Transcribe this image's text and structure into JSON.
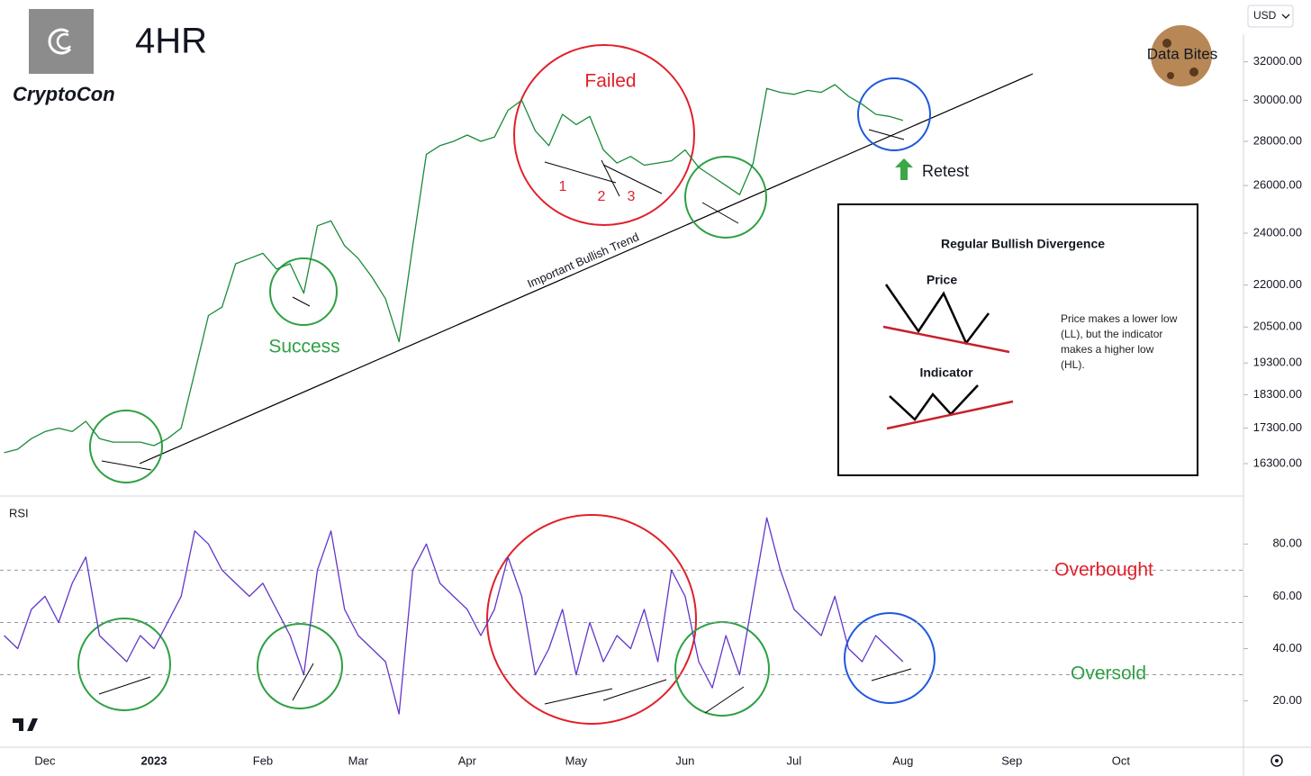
{
  "chart_data": [
    {
      "type": "line",
      "title": "4HR",
      "brand": "CryptoCon",
      "watermark": "Data Bites",
      "currency": "USD",
      "log": true,
      "ylim": [
        15460,
        35500
      ],
      "yticks": [
        {
          "value": 32000,
          "label": "32000.00"
        },
        {
          "value": 30000,
          "label": "30000.00"
        },
        {
          "value": 28000,
          "label": "28000.00"
        },
        {
          "value": 26000,
          "label": "26000.00"
        },
        {
          "value": 24000,
          "label": "24000.00"
        },
        {
          "value": 22000,
          "label": "22000.00"
        },
        {
          "value": 20500,
          "label": "20500.00"
        },
        {
          "value": 19300,
          "label": "19300.00"
        },
        {
          "value": 18300,
          "label": "18300.00"
        },
        {
          "value": 17300,
          "label": "17300.00"
        },
        {
          "value": 16300,
          "label": "16300.00"
        }
      ],
      "series": [
        {
          "name": "Price",
          "color": "#1b8a3a",
          "values": [
            16600,
            16700,
            17000,
            17200,
            17300,
            17200,
            17500,
            17000,
            16900,
            16900,
            16900,
            16800,
            17000,
            17300,
            19000,
            20900,
            21200,
            22800,
            23000,
            23200,
            22600,
            22800,
            21700,
            24300,
            24500,
            23500,
            23000,
            22300,
            21500,
            20000,
            23500,
            27400,
            27800,
            28000,
            28300,
            28000,
            28200,
            29500,
            30000,
            28500,
            27800,
            29300,
            28800,
            29200,
            27600,
            27000,
            27300,
            26900,
            27000,
            27100,
            27600,
            26800,
            26400,
            26000,
            25600,
            27000,
            30600,
            30400,
            30300,
            30500,
            30400,
            30800,
            30200,
            29800,
            29300,
            29200,
            29000,
            null,
            null,
            null,
            null,
            null,
            null,
            null,
            null,
            null,
            null,
            null,
            null,
            null,
            null,
            null,
            null,
            null,
            null,
            null,
            null,
            null,
            null,
            null,
            null
          ]
        }
      ],
      "annotations": [
        "Failed",
        "1",
        "2",
        "3",
        "Success",
        "Retest",
        "Important Bullish Trend"
      ],
      "legend_box": {
        "title": "Regular Bullish Divergence",
        "labels": [
          "Price",
          "Indicator"
        ],
        "note": "Price makes a lower low (LL), but the indicator makes a higher low (HL)."
      }
    },
    {
      "type": "line",
      "title": "RSI",
      "categories": [
        null,
        null,
        null,
        "Dec",
        null,
        null,
        null,
        null,
        null,
        null,
        null,
        "2023",
        null,
        null,
        null,
        null,
        null,
        null,
        null,
        "Feb",
        null,
        null,
        null,
        null,
        null,
        null,
        "Mar",
        null,
        null,
        null,
        null,
        null,
        null,
        null,
        "Apr",
        null,
        null,
        null,
        null,
        null,
        null,
        null,
        "May",
        null,
        null,
        null,
        null,
        null,
        null,
        null,
        "Jun",
        null,
        null,
        null,
        null,
        null,
        null,
        null,
        "Jul",
        null,
        null,
        null,
        null,
        null,
        null,
        null,
        "Aug",
        null,
        null,
        null,
        null,
        null,
        null,
        null,
        "Sep",
        null,
        null,
        null,
        null,
        null,
        null,
        null,
        "Oct",
        null,
        null,
        null,
        null,
        null,
        null,
        null,
        null
      ],
      "ylim": [
        3,
        98
      ],
      "yticks": [
        {
          "value": 80,
          "label": "80.00"
        },
        {
          "value": 60,
          "label": "60.00"
        },
        {
          "value": 40,
          "label": "40.00"
        },
        {
          "value": 20,
          "label": "20.00"
        }
      ],
      "hlines": [
        70,
        50,
        30
      ],
      "series": [
        {
          "name": "RSI",
          "color": "#6236c8",
          "values": [
            45,
            40,
            55,
            60,
            50,
            65,
            75,
            45,
            40,
            35,
            45,
            40,
            50,
            60,
            85,
            80,
            70,
            65,
            60,
            65,
            55,
            45,
            30,
            70,
            85,
            55,
            45,
            40,
            35,
            15,
            70,
            80,
            65,
            60,
            55,
            45,
            55,
            75,
            60,
            30,
            40,
            55,
            30,
            50,
            35,
            45,
            40,
            55,
            35,
            70,
            60,
            35,
            25,
            45,
            30,
            60,
            90,
            70,
            55,
            50,
            45,
            60,
            40,
            35,
            45,
            40,
            35,
            null,
            null,
            null,
            null,
            null,
            null,
            null,
            null,
            null,
            null,
            null,
            null,
            null,
            null,
            null,
            null,
            null,
            null,
            null,
            null,
            null,
            null,
            null,
            null
          ]
        }
      ],
      "annotations": [
        "Overbought",
        "Oversold"
      ]
    }
  ]
}
